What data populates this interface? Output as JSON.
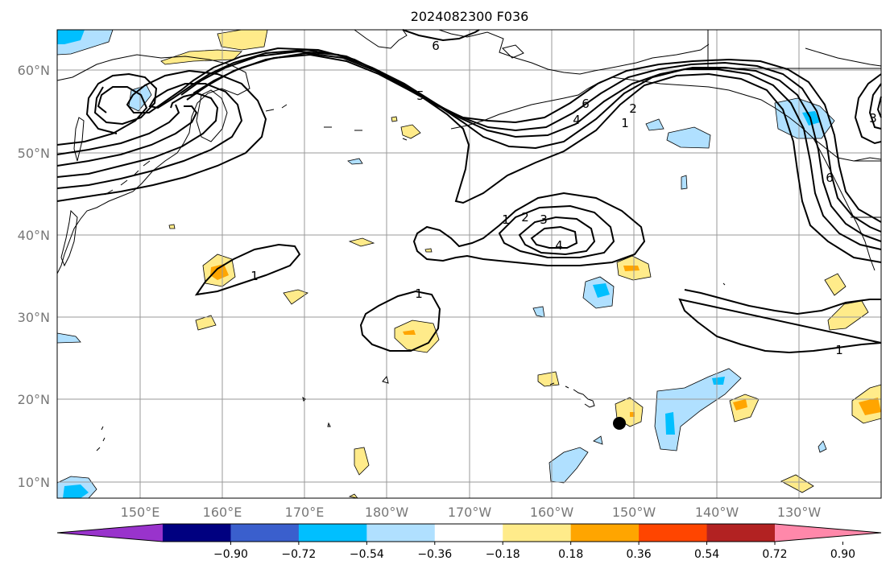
{
  "title": "2024082300 F036",
  "lat_labels": [
    "60°N",
    "50°N",
    "40°N",
    "30°N",
    "20°N",
    "10°N"
  ],
  "lon_labels": [
    "150°E",
    "160°E",
    "170°E",
    "180°W",
    "170°W",
    "160°W",
    "150°W",
    "140°W",
    "130°W"
  ],
  "colorbar": {
    "ticks": [
      "−0.90",
      "−0.72",
      "−0.54",
      "−0.36",
      "−0.18",
      "0.18",
      "0.36",
      "0.54",
      "0.72",
      "0.90"
    ],
    "colors": [
      "#9933cc",
      "#000080",
      "#3a5fcd",
      "#00bfff",
      "#b0e0ff",
      "#ffffff",
      "#ffeb8a",
      "#ffa500",
      "#ff4500",
      "#b22222",
      "#ff88aa"
    ]
  },
  "contour_labels": [
    "6",
    "5",
    "6",
    "4",
    "2",
    "1",
    "1",
    "2",
    "3",
    "4",
    "1",
    "1",
    "1",
    "3",
    "6"
  ],
  "fill_colors": {
    "light_blue": "#b0e0ff",
    "blue": "#00bfff",
    "light_yellow": "#ffeb8a",
    "orange": "#ffa500"
  },
  "marker_color": "#000000"
}
